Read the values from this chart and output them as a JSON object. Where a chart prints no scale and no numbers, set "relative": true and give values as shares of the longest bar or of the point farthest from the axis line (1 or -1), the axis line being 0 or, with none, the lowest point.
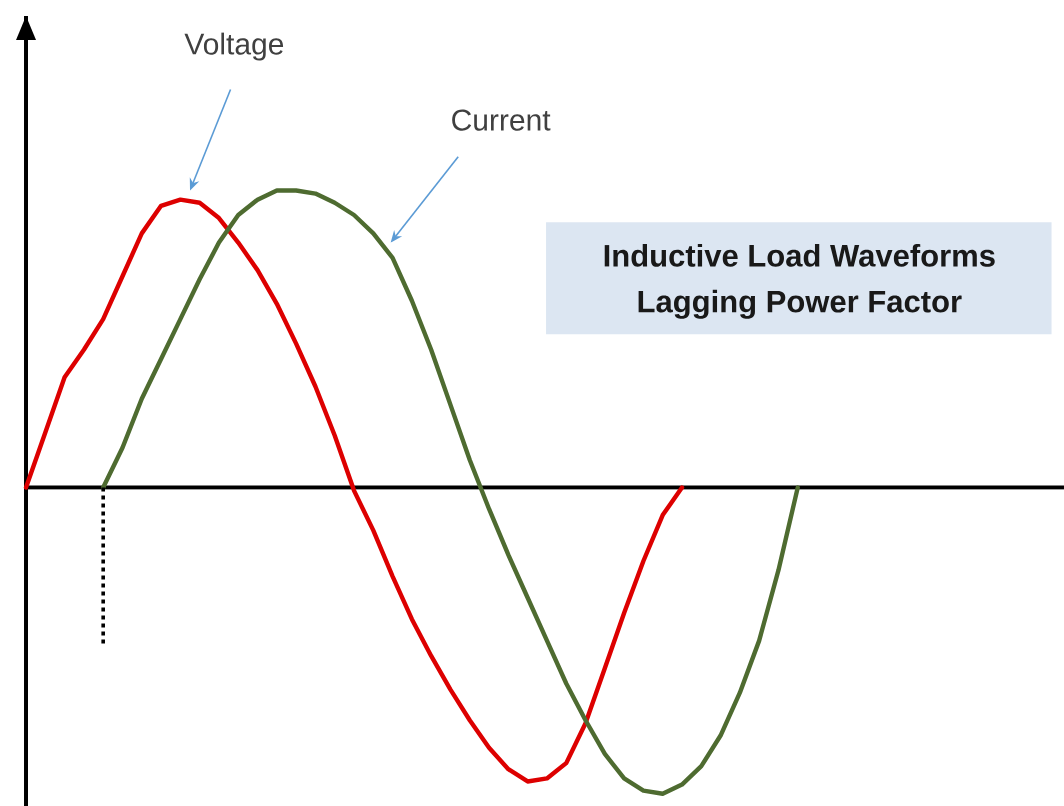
{
  "chart_data": {
    "type": "line",
    "title": "Inductive Load Waveforms",
    "subtitle": "Lagging Power Factor",
    "relative": true,
    "categories": [
      null,
      null,
      null,
      null,
      null,
      null,
      null,
      null,
      null,
      null,
      null,
      null,
      null,
      null,
      null,
      null,
      null,
      null,
      null,
      null,
      null,
      null,
      null,
      null,
      null,
      null,
      null,
      null,
      null,
      null,
      null,
      null,
      null,
      null,
      null,
      null,
      null,
      null,
      null,
      null,
      null
    ],
    "series": [
      {
        "name": "Voltage",
        "color": "#dd0000",
        "values": [
          0,
          0.18,
          0.36,
          0.45,
          0.55,
          0.69,
          0.83,
          0.92,
          0.94,
          0.93,
          0.88,
          0.8,
          0.71,
          0.6,
          0.47,
          0.33,
          0.17,
          -0.01,
          -0.14,
          -0.29,
          -0.43,
          -0.55,
          -0.66,
          -0.76,
          -0.85,
          -0.92,
          -0.96,
          -0.95,
          -0.9,
          -0.77,
          -0.59,
          -0.41,
          -0.24,
          -0.09,
          0,
          null,
          null,
          null,
          null,
          null,
          null
        ]
      },
      {
        "name": "Current",
        "color": "#4e6b30",
        "values": [
          null,
          null,
          null,
          null,
          0,
          0.13,
          0.29,
          0.42,
          0.55,
          0.68,
          0.8,
          0.89,
          0.94,
          0.97,
          0.97,
          0.96,
          0.93,
          0.89,
          0.83,
          0.75,
          0.61,
          0.45,
          0.27,
          0.09,
          -0.07,
          -0.22,
          -0.36,
          -0.5,
          -0.64,
          -0.76,
          -0.87,
          -0.95,
          -0.99,
          -1,
          -0.97,
          -0.91,
          -0.81,
          -0.67,
          -0.5,
          -0.27,
          0
        ]
      }
    ]
  }
}
